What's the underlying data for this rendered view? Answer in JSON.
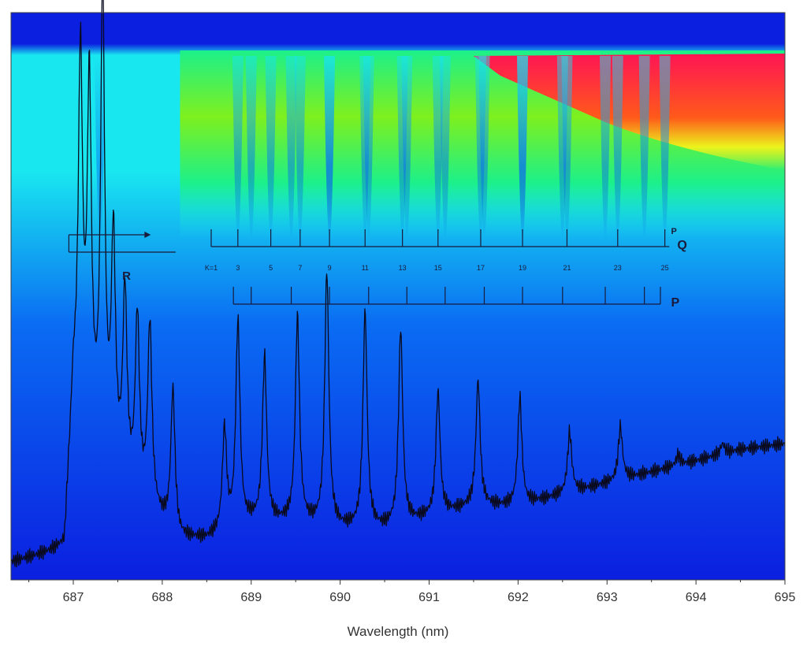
{
  "chart_data": {
    "type": "heatmap",
    "title": "",
    "xlabel": "Wavelength (nm)",
    "ylabel": "",
    "xlim": [
      686.3,
      695.0
    ],
    "x_ticks": [
      687,
      688,
      689,
      690,
      691,
      692,
      693,
      694,
      695
    ],
    "x_tick_labels": [
      "687",
      "688",
      "689",
      "690",
      "691",
      "692",
      "693",
      "694",
      "695"
    ],
    "colormap": [
      "#0b1fe0",
      "#0a6cf3",
      "#19e7ef",
      "#1cf08a",
      "#7ef01e",
      "#ecf31c",
      "#ff5a1a",
      "#ff1455"
    ],
    "spectrum": {
      "color": "#0a0a1e",
      "baseline_points": [
        [
          686.3,
          0.03
        ],
        [
          686.6,
          0.04
        ],
        [
          686.9,
          0.05
        ],
        [
          687.0,
          0.33
        ],
        [
          687.3,
          0.2
        ],
        [
          687.8,
          0.13
        ],
        [
          688.2,
          0.07
        ],
        [
          688.5,
          0.07
        ],
        [
          689.0,
          0.1
        ],
        [
          689.5,
          0.1
        ],
        [
          690.0,
          0.09
        ],
        [
          690.5,
          0.09
        ],
        [
          691.0,
          0.11
        ],
        [
          691.5,
          0.13
        ],
        [
          692.0,
          0.13
        ],
        [
          692.5,
          0.15
        ],
        [
          693.0,
          0.17
        ],
        [
          693.5,
          0.19
        ],
        [
          694.0,
          0.21
        ],
        [
          694.5,
          0.23
        ],
        [
          695.0,
          0.24
        ]
      ],
      "peaks": [
        [
          687.08,
          0.92
        ],
        [
          687.18,
          0.85
        ],
        [
          687.33,
          1.02
        ],
        [
          687.45,
          0.58
        ],
        [
          687.58,
          0.49
        ],
        [
          687.72,
          0.45
        ],
        [
          687.86,
          0.44
        ],
        [
          688.12,
          0.33
        ],
        [
          688.7,
          0.26
        ],
        [
          688.85,
          0.45
        ],
        [
          689.15,
          0.39
        ],
        [
          689.52,
          0.46
        ],
        [
          689.85,
          0.54
        ],
        [
          690.28,
          0.47
        ],
        [
          690.68,
          0.44
        ],
        [
          691.1,
          0.33
        ],
        [
          691.55,
          0.35
        ],
        [
          692.02,
          0.32
        ],
        [
          692.58,
          0.26
        ],
        [
          693.15,
          0.27
        ],
        [
          693.8,
          0.22
        ],
        [
          694.3,
          0.24
        ]
      ]
    },
    "annotations": {
      "R": {
        "label": "R",
        "x_range": [
          686.95,
          688.15
        ],
        "lines": [
          687.3
        ]
      },
      "PQ": {
        "label": "Q",
        "superscript": "P",
        "x_range": [
          688.55,
          693.7
        ],
        "lines": [
          688.85,
          689.22,
          689.55,
          689.88,
          690.28,
          690.7,
          691.1,
          691.58,
          692.05,
          692.55,
          693.12,
          693.65
        ],
        "numbers": [
          "K=1",
          "3",
          "5",
          "7",
          "9",
          "11",
          "13",
          "15",
          "17",
          "19",
          "21",
          "23",
          "25"
        ],
        "number_positions": [
          688.55,
          688.85,
          689.22,
          689.55,
          689.88,
          690.28,
          690.7,
          691.1,
          691.58,
          692.05,
          692.55,
          693.12,
          693.65
        ]
      },
      "P": {
        "label": "P",
        "x_range": [
          688.8,
          693.6
        ],
        "lines": [
          689.0,
          689.45,
          689.88,
          690.32,
          690.75,
          691.18,
          691.62,
          692.05,
          692.5,
          692.98,
          693.42
        ]
      }
    },
    "grid": false,
    "legend": "none"
  }
}
